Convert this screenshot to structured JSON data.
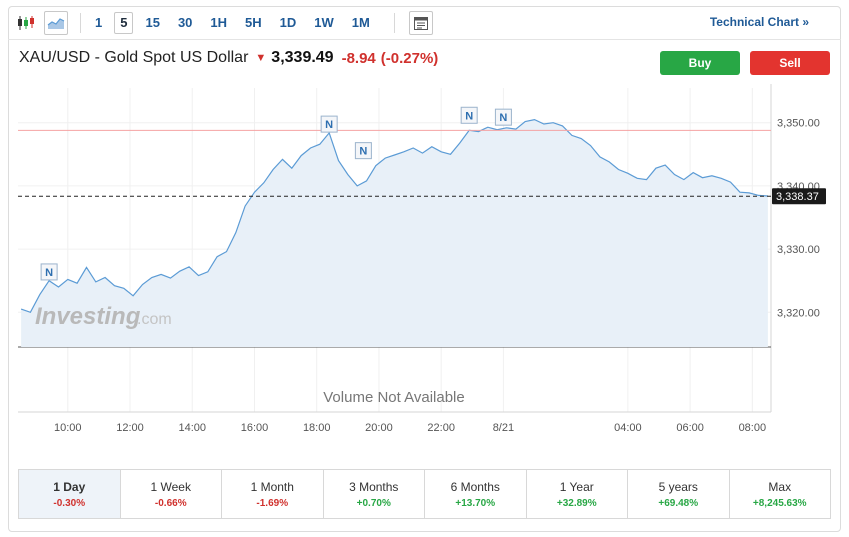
{
  "toolbar": {
    "timeframes": [
      "1",
      "5",
      "15",
      "30",
      "1H",
      "5H",
      "1D",
      "1W",
      "1M"
    ],
    "active_timeframe": "5",
    "technical_chart": "Technical Chart »"
  },
  "instrument": {
    "name": "XAU/USD - Gold Spot US Dollar",
    "price": "3,339.49",
    "change": "-8.94",
    "change_pct": "(-0.27%)"
  },
  "actions": {
    "buy": "Buy",
    "sell": "Sell"
  },
  "watermark": {
    "brand": "Investing",
    "suffix": ".com"
  },
  "volume_note": "Volume Not Available",
  "colors": {
    "line": "#5b9bd5",
    "area": "#e8f0f8",
    "prev_close": "#f4a3a3",
    "negative": "#d0312d",
    "positive": "#28a745",
    "buy": "#28a745",
    "sell": "#e3342f"
  },
  "chart_data": {
    "type": "area",
    "x_ticks": [
      "10:00",
      "12:00",
      "14:00",
      "16:00",
      "18:00",
      "20:00",
      "22:00",
      "8/21",
      "04:00",
      "06:00",
      "08:00"
    ],
    "x_tick_hours": [
      10,
      12,
      14,
      16,
      18,
      20,
      22,
      24,
      28,
      30,
      32
    ],
    "x_range": [
      8.4,
      32.6
    ],
    "y_ticks": [
      "3,350.00",
      "3,340.00",
      "3,330.00",
      "3,320.00"
    ],
    "y_tick_values": [
      3350,
      3340,
      3330,
      3320
    ],
    "ylim": [
      3314.5,
      3355.5
    ],
    "current_value": "3,338.37",
    "current_level": 3338.37,
    "prev_close_level": 3348.8,
    "news_markers": [
      {
        "label": "N",
        "hour": 9.4,
        "value": 3324.8
      },
      {
        "label": "N",
        "hour": 18.4,
        "value": 3348.2
      },
      {
        "label": "N",
        "hour": 19.5,
        "value": 3344.0
      },
      {
        "label": "N",
        "hour": 22.9,
        "value": 3349.6
      },
      {
        "label": "N",
        "hour": 24.0,
        "value": 3349.3
      }
    ],
    "series": [
      {
        "x": [
          8.5,
          8.8,
          9.1,
          9.4,
          9.7,
          10.0,
          10.3,
          10.6,
          10.9,
          11.2,
          11.5,
          11.8,
          12.1,
          12.4,
          12.7,
          13.0,
          13.3,
          13.6,
          13.9,
          14.2,
          14.5,
          14.8,
          15.1,
          15.4,
          15.7,
          16.0,
          16.3,
          16.6,
          16.9,
          17.2,
          17.5,
          17.8,
          18.1,
          18.4,
          18.7,
          19.0,
          19.3,
          19.6,
          19.9,
          20.2,
          20.5,
          20.8,
          21.1,
          21.4,
          21.7,
          22.0,
          22.3,
          22.6,
          22.9,
          23.2,
          23.5,
          23.8,
          24.1,
          24.4,
          24.7,
          25.0,
          25.3,
          25.6,
          25.9,
          26.2,
          26.5,
          26.8,
          27.1,
          27.4,
          27.7,
          28.0,
          28.3,
          28.6,
          28.9,
          29.2,
          29.5,
          29.8,
          30.1,
          30.4,
          30.7,
          31.0,
          31.3,
          31.6,
          31.9,
          32.2,
          32.5
        ],
        "values": [
          3320.5,
          3320.0,
          3322.8,
          3325.0,
          3324.0,
          3325.2,
          3324.6,
          3327.1,
          3324.8,
          3325.5,
          3324.2,
          3323.8,
          3322.6,
          3324.4,
          3325.5,
          3326.0,
          3325.4,
          3326.5,
          3327.2,
          3325.8,
          3326.4,
          3328.8,
          3329.6,
          3332.6,
          3336.8,
          3339.0,
          3340.5,
          3342.6,
          3344.2,
          3342.8,
          3344.8,
          3346.0,
          3346.6,
          3348.4,
          3344.0,
          3341.8,
          3340.0,
          3340.8,
          3343.2,
          3344.4,
          3344.9,
          3345.4,
          3346.0,
          3345.2,
          3346.2,
          3345.4,
          3345.0,
          3346.8,
          3348.8,
          3348.6,
          3349.3,
          3348.9,
          3349.2,
          3349.0,
          3350.2,
          3350.5,
          3349.8,
          3350.0,
          3349.5,
          3348.0,
          3347.5,
          3346.4,
          3344.6,
          3343.8,
          3342.6,
          3342.0,
          3341.2,
          3341.0,
          3342.8,
          3343.3,
          3341.8,
          3341.0,
          3342.1,
          3341.3,
          3341.6,
          3341.2,
          3340.6,
          3339.0,
          3338.9,
          3338.5,
          3338.4
        ]
      }
    ]
  },
  "periods": [
    {
      "label": "1 Day",
      "value": "-0.30%",
      "sign": "neg"
    },
    {
      "label": "1 Week",
      "value": "-0.66%",
      "sign": "neg"
    },
    {
      "label": "1 Month",
      "value": "-1.69%",
      "sign": "neg"
    },
    {
      "label": "3 Months",
      "value": "+0.70%",
      "sign": "pos"
    },
    {
      "label": "6 Months",
      "value": "+13.70%",
      "sign": "pos"
    },
    {
      "label": "1 Year",
      "value": "+32.89%",
      "sign": "pos"
    },
    {
      "label": "5 years",
      "value": "+69.48%",
      "sign": "pos"
    },
    {
      "label": "Max",
      "value": "+8,245.63%",
      "sign": "pos"
    }
  ]
}
